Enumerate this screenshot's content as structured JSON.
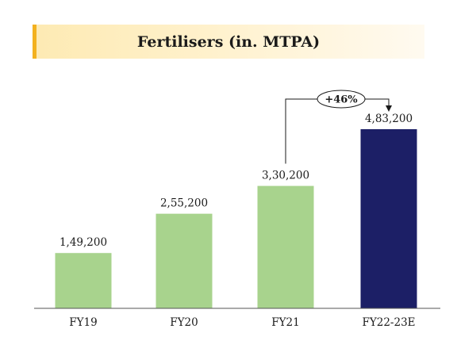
{
  "title": "Fertilisers (in. MTPA)",
  "colors": {
    "bar": "#a8d38d",
    "highlight": "#1c1f66",
    "title_accent": "#f3b11f",
    "axis": "#555555"
  },
  "chart_data": {
    "type": "bar",
    "title": "Fertilisers (in. MTPA)",
    "categories": [
      "FY19",
      "FY20",
      "FY21",
      "FY22-23E"
    ],
    "values": [
      149200,
      255200,
      330200,
      483200
    ],
    "value_labels": [
      "1,49,200",
      "2,55,200",
      "3,30,200",
      "4,83,200"
    ],
    "highlight_index": 3,
    "ylim": [
      0,
      483200
    ],
    "grid": false,
    "legend": "none",
    "annotation": {
      "text": "+46%",
      "from_index": 2,
      "to_index": 3
    }
  }
}
